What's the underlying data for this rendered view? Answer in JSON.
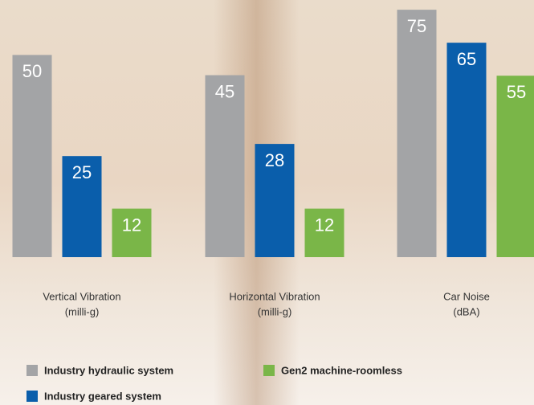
{
  "legend": [
    {
      "name": "Industry hydraulic system",
      "color": "#a3a4a6"
    },
    {
      "name": "Industry geared system",
      "color": "#0a5eab"
    },
    {
      "name": "Gen2 machine-roomless",
      "color": "#7ab648"
    }
  ],
  "chart_data": [
    {
      "type": "bar",
      "xlabel": [
        "Vertical Vibration",
        "(milli-g)"
      ],
      "values": [
        50,
        25,
        12
      ],
      "ylim": [
        0,
        62
      ]
    },
    {
      "type": "bar",
      "xlabel": [
        "Horizontal Vibration",
        "(milli-g)"
      ],
      "values": [
        45,
        28,
        12
      ],
      "ylim": [
        0,
        62
      ]
    },
    {
      "type": "bar",
      "xlabel": [
        "Car Noise",
        "(dBA)"
      ],
      "values": [
        75,
        65,
        55
      ],
      "ylim": [
        0,
        76
      ]
    }
  ]
}
